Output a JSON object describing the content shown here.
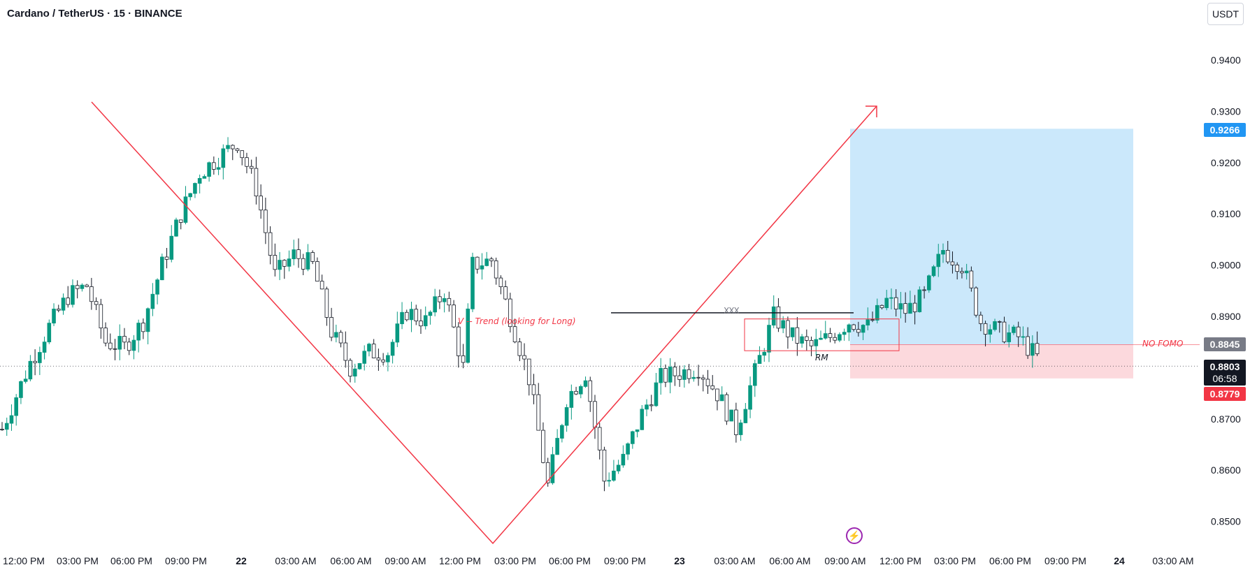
{
  "header": {
    "title": "Cardano / TetherUS · 15 · BINANCE",
    "currency": "USDT"
  },
  "labels": {
    "target": "0.9266",
    "entry": "0.8845",
    "last_price": "0.8803",
    "countdown": "06:58",
    "stop": "0.8779",
    "trend_note": "V -- Trend (looking for Long)",
    "fomo_note": "NO FOMO",
    "rm_note": "RM",
    "xxx_note": "XXX"
  },
  "colors": {
    "up": "#089981",
    "down": "#131722",
    "line": "#f23645",
    "target_zone": "#cbe8fb",
    "stop_zone": "#fcd9dd",
    "accent": "#2196f3"
  },
  "icons": {
    "flash": "lightning-bolt-icon"
  },
  "chart_data": {
    "type": "candlestick",
    "symbol": "ADA/USDT",
    "interval": "15",
    "exchange": "BINANCE",
    "ylim": [
      0.845,
      0.947
    ],
    "yticks": [
      0.94,
      0.93,
      0.92,
      0.91,
      0.9,
      0.89,
      0.88,
      0.87,
      0.86,
      0.85
    ],
    "xticks": [
      "12:00 PM",
      "03:00 PM",
      "06:00 PM",
      "09:00 PM",
      "22",
      "03:00 AM",
      "06:00 AM",
      "09:00 AM",
      "12:00 PM",
      "03:00 PM",
      "06:00 PM",
      "09:00 PM",
      "23",
      "03:00 AM",
      "06:00 AM",
      "09:00 AM",
      "12:00 PM",
      "03:00 PM",
      "06:00 PM",
      "09:00 PM",
      "24",
      "03:00 AM"
    ],
    "close_path": [
      [
        0,
        0.868
      ],
      [
        6,
        0.881
      ],
      [
        10,
        0.888
      ],
      [
        14,
        0.894
      ],
      [
        18,
        0.896
      ],
      [
        22,
        0.885
      ],
      [
        26,
        0.884
      ],
      [
        30,
        0.889
      ],
      [
        34,
        0.9
      ],
      [
        38,
        0.91
      ],
      [
        42,
        0.918
      ],
      [
        46,
        0.921
      ],
      [
        50,
        0.924
      ],
      [
        54,
        0.915
      ],
      [
        58,
        0.898
      ],
      [
        62,
        0.902
      ],
      [
        66,
        0.9
      ],
      [
        70,
        0.887
      ],
      [
        74,
        0.88
      ],
      [
        78,
        0.883
      ],
      [
        82,
        0.883
      ],
      [
        86,
        0.891
      ],
      [
        90,
        0.889
      ],
      [
        94,
        0.895
      ],
      [
        98,
        0.88
      ],
      [
        100,
        0.9
      ],
      [
        104,
        0.901
      ],
      [
        108,
        0.89
      ],
      [
        112,
        0.878
      ],
      [
        116,
        0.857
      ],
      [
        120,
        0.874
      ],
      [
        124,
        0.879
      ],
      [
        128,
        0.858
      ],
      [
        132,
        0.862
      ],
      [
        136,
        0.871
      ],
      [
        140,
        0.878
      ],
      [
        144,
        0.879
      ],
      [
        148,
        0.88
      ],
      [
        152,
        0.875
      ],
      [
        156,
        0.868
      ],
      [
        160,
        0.879
      ],
      [
        164,
        0.89
      ],
      [
        168,
        0.886
      ],
      [
        172,
        0.884
      ],
      [
        176,
        0.886
      ],
      [
        180,
        0.889
      ],
      [
        184,
        0.888
      ],
      [
        188,
        0.893
      ],
      [
        192,
        0.891
      ],
      [
        196,
        0.894
      ],
      [
        200,
        0.903
      ],
      [
        204,
        0.9
      ],
      [
        208,
        0.889
      ],
      [
        212,
        0.887
      ],
      [
        216,
        0.886
      ],
      [
        220,
        0.882
      ]
    ],
    "drawings": {
      "trend_lines": [
        "V -- Trend (looking for Long)"
      ],
      "horizontal_level": 0.8907,
      "rectangle": [
        0.8895,
        0.8833
      ],
      "position": {
        "type": "long",
        "entry": 0.8845,
        "target": 0.9266,
        "stop": 0.8779
      }
    }
  }
}
